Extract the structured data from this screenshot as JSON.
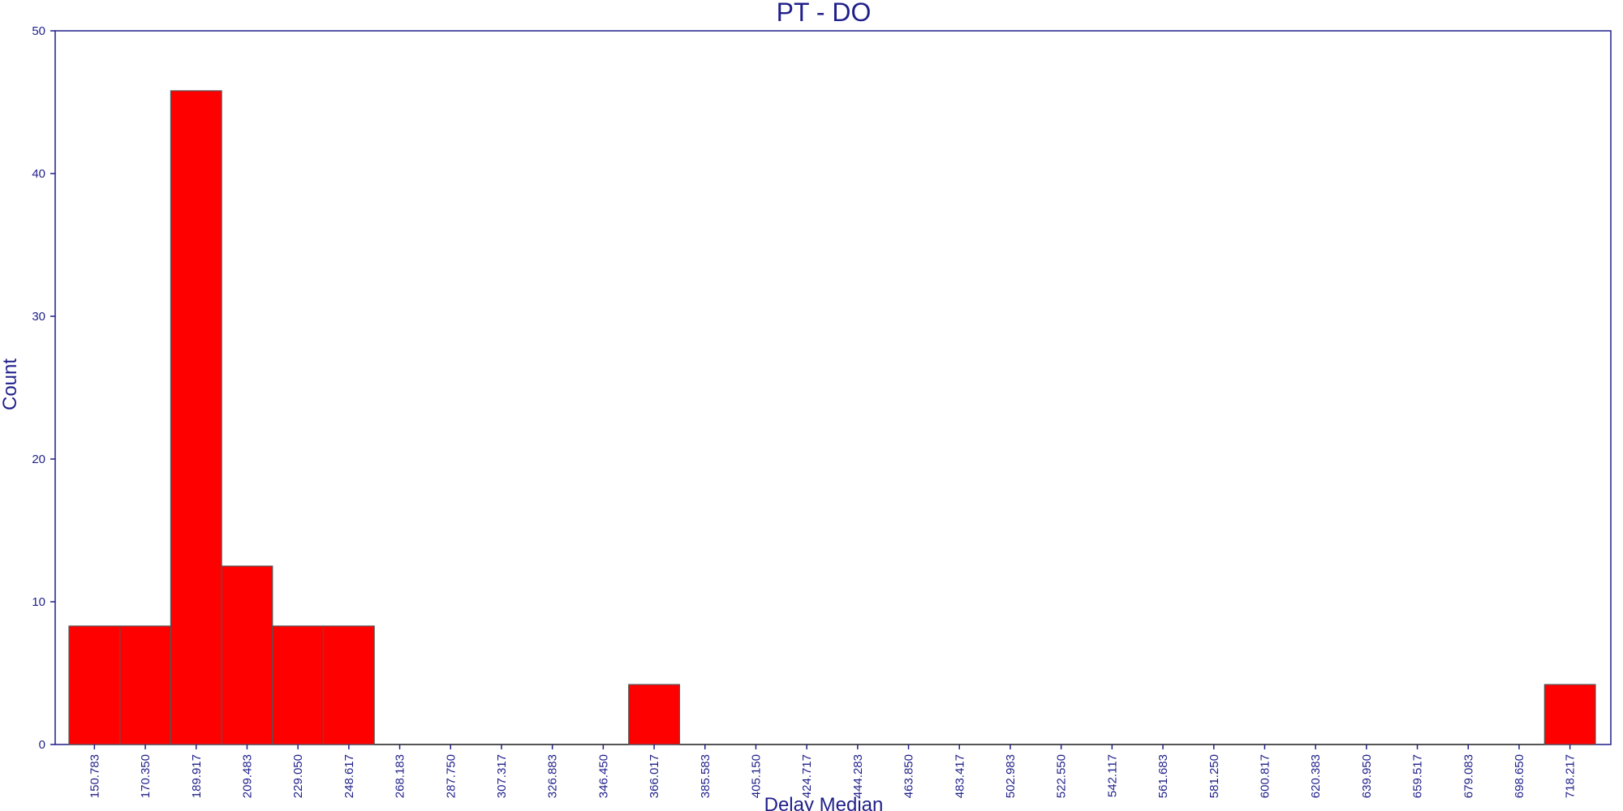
{
  "chart_data": {
    "type": "bar",
    "title": "PT - DO",
    "xlabel": "Delay Median",
    "ylabel": "Count",
    "ylim": [
      0,
      50
    ],
    "yticks": [
      0,
      10,
      20,
      30,
      40,
      50
    ],
    "grid": false,
    "legend": "none",
    "bar_color": "#ff0000",
    "bar_edge_color": "#555555",
    "axis_color": "#1f1f8a",
    "categories": [
      "150.783",
      "170.350",
      "189.917",
      "209.483",
      "229.050",
      "248.617",
      "268.183",
      "287.750",
      "307.317",
      "326.883",
      "346.450",
      "366.017",
      "385.583",
      "405.150",
      "424.717",
      "444.283",
      "463.850",
      "483.417",
      "502.983",
      "522.550",
      "542.117",
      "561.683",
      "581.250",
      "600.817",
      "620.383",
      "639.950",
      "659.517",
      "679.083",
      "698.650",
      "718.217"
    ],
    "values": [
      8.3,
      8.3,
      45.8,
      12.5,
      8.3,
      8.3,
      0,
      0,
      0,
      0,
      0,
      4.2,
      0,
      0,
      0,
      0,
      0,
      0,
      0,
      0,
      0,
      0,
      0,
      0,
      0,
      0,
      0,
      0,
      0,
      4.2
    ]
  }
}
